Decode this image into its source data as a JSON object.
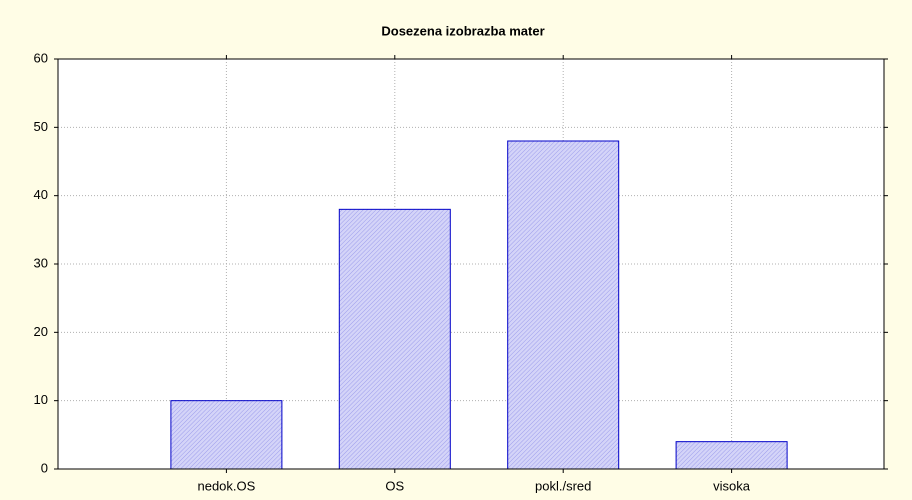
{
  "chart_data": {
    "type": "bar",
    "title": "Dosezena izobrazba mater",
    "categories": [
      "nedok.OS",
      "OS",
      "pokl./sred",
      "visoka"
    ],
    "values": [
      10,
      38,
      48,
      4
    ],
    "color": "#c8c8f4",
    "ylim": [
      0,
      60
    ],
    "yticks": [
      0,
      10,
      20,
      30,
      40,
      50,
      60
    ],
    "grid": true
  }
}
